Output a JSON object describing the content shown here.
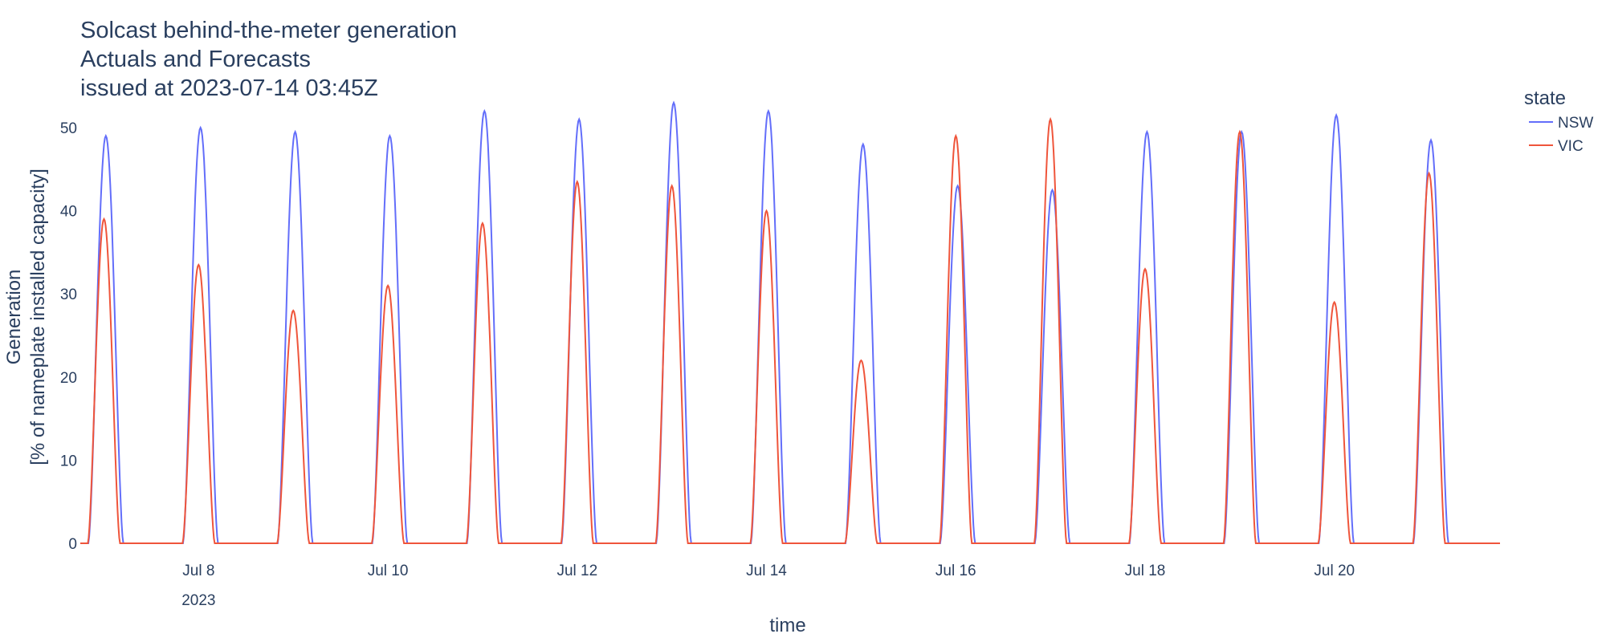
{
  "chart_data": {
    "type": "line",
    "title_lines": [
      "Solcast behind-the-meter generation",
      "Actuals and Forecasts",
      "issued at 2023-07-14 03:45Z"
    ],
    "xlabel": "time",
    "ylabel_lines": [
      "Generation",
      "[% of nameplate installed capacity]"
    ],
    "x_range": [
      "2023-07-06T18:00",
      "2023-07-21T18:00"
    ],
    "ylim": [
      0,
      53
    ],
    "y_ticks": [
      0,
      10,
      20,
      30,
      40,
      50
    ],
    "x_ticks": [
      {
        "date": "2023-07-08",
        "label": "Jul 8",
        "sublabel": "2023"
      },
      {
        "date": "2023-07-10",
        "label": "Jul 10",
        "sublabel": ""
      },
      {
        "date": "2023-07-12",
        "label": "Jul 12",
        "sublabel": ""
      },
      {
        "date": "2023-07-14",
        "label": "Jul 14",
        "sublabel": ""
      },
      {
        "date": "2023-07-16",
        "label": "Jul 16",
        "sublabel": ""
      },
      {
        "date": "2023-07-18",
        "label": "Jul 18",
        "sublabel": ""
      },
      {
        "date": "2023-07-20",
        "label": "Jul 20",
        "sublabel": ""
      }
    ],
    "grid": false,
    "legend": {
      "title": "state",
      "placement": "top-right"
    },
    "series": [
      {
        "name": "NSW",
        "color": "#636efa",
        "daily": [
          {
            "date": "2023-07-07",
            "peak": 49.0
          },
          {
            "date": "2023-07-08",
            "peak": 50.0
          },
          {
            "date": "2023-07-09",
            "peak": 49.5
          },
          {
            "date": "2023-07-10",
            "peak": 49.0
          },
          {
            "date": "2023-07-11",
            "peak": 52.0
          },
          {
            "date": "2023-07-12",
            "peak": 51.0
          },
          {
            "date": "2023-07-13",
            "peak": 53.0
          },
          {
            "date": "2023-07-14",
            "peak": 52.0
          },
          {
            "date": "2023-07-15",
            "peak": 48.0
          },
          {
            "date": "2023-07-16",
            "peak": 43.0
          },
          {
            "date": "2023-07-17",
            "peak": 42.5
          },
          {
            "date": "2023-07-18",
            "peak": 49.5
          },
          {
            "date": "2023-07-19",
            "peak": 49.5
          },
          {
            "date": "2023-07-20",
            "peak": 51.5
          },
          {
            "date": "2023-07-21",
            "peak": 48.5
          }
        ]
      },
      {
        "name": "VIC",
        "color": "#ef553b",
        "daily": [
          {
            "date": "2023-07-07",
            "peak": 39.0
          },
          {
            "date": "2023-07-08",
            "peak": 33.5
          },
          {
            "date": "2023-07-09",
            "peak": 28.0
          },
          {
            "date": "2023-07-10",
            "peak": 31.0
          },
          {
            "date": "2023-07-11",
            "peak": 38.5
          },
          {
            "date": "2023-07-12",
            "peak": 43.5
          },
          {
            "date": "2023-07-13",
            "peak": 43.0
          },
          {
            "date": "2023-07-14",
            "peak": 40.0
          },
          {
            "date": "2023-07-15",
            "peak": 22.0
          },
          {
            "date": "2023-07-16",
            "peak": 49.0
          },
          {
            "date": "2023-07-17",
            "peak": 51.0
          },
          {
            "date": "2023-07-18",
            "peak": 33.0
          },
          {
            "date": "2023-07-19",
            "peak": 49.5
          },
          {
            "date": "2023-07-20",
            "peak": 29.0
          },
          {
            "date": "2023-07-21",
            "peak": 44.5
          }
        ]
      }
    ]
  }
}
